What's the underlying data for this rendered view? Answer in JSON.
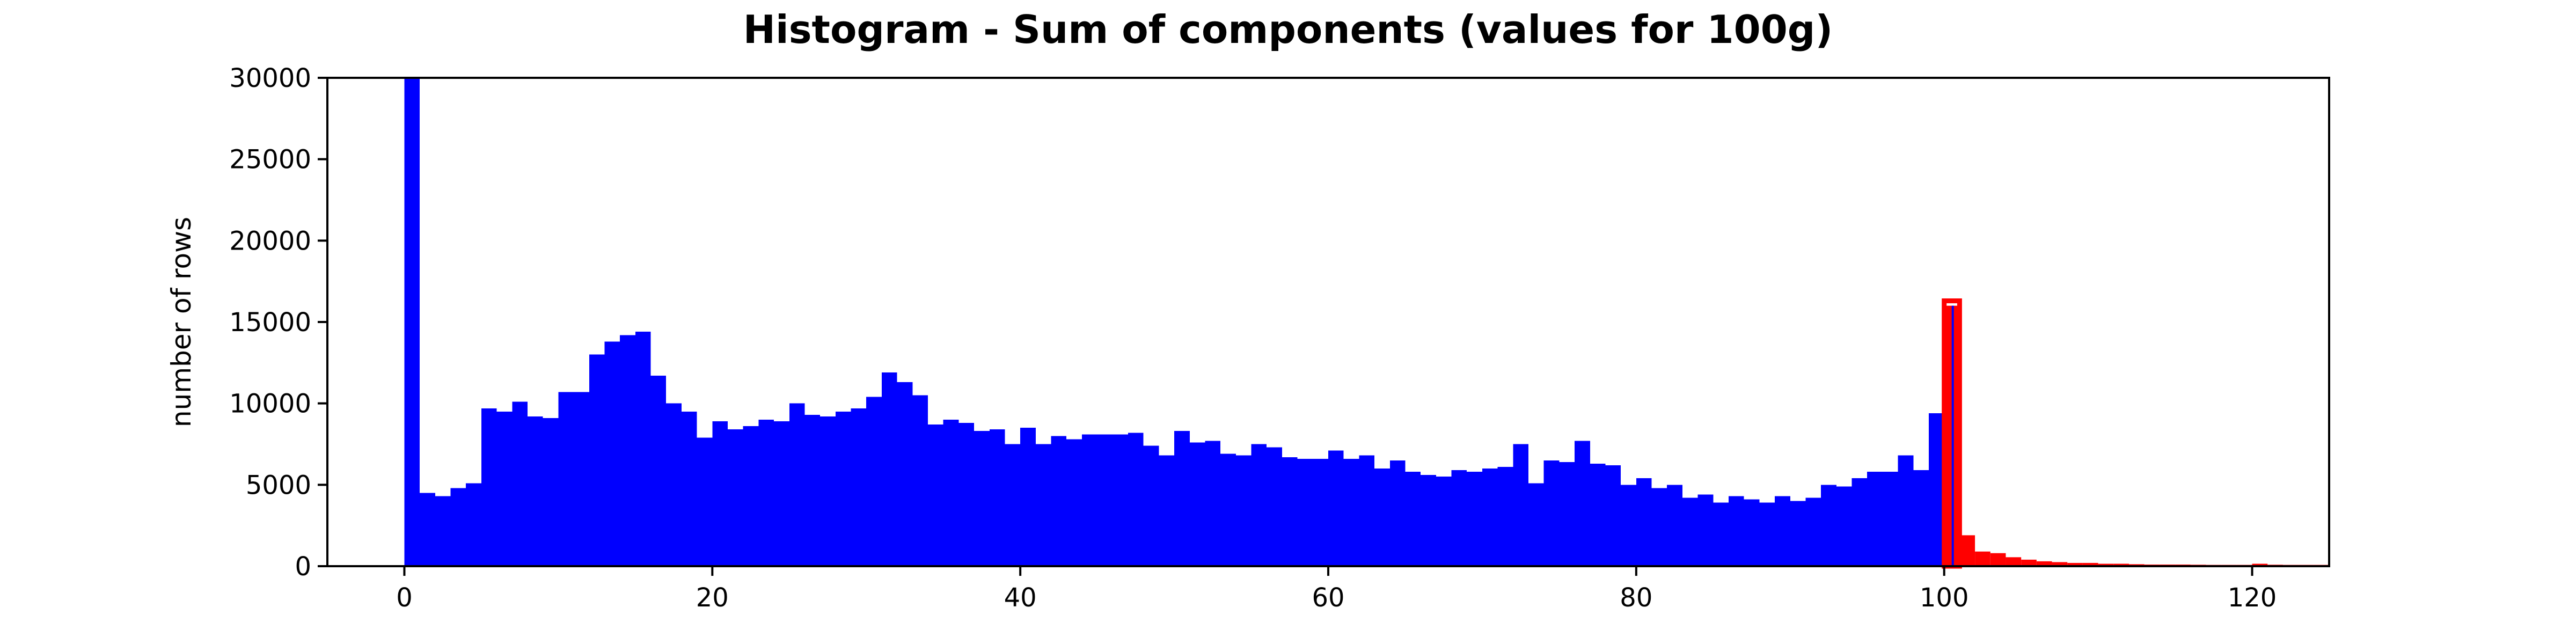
{
  "chart_data": {
    "type": "bar",
    "title": "Histogram - Sum of components (values for 100g)",
    "xlabel": "",
    "ylabel": "number of rows",
    "xlim": [
      -5,
      125
    ],
    "ylim": [
      0,
      30000
    ],
    "bin_width": 1,
    "grid": false,
    "x_ticks": [
      0,
      20,
      40,
      60,
      80,
      100,
      120
    ],
    "y_ticks": [
      0,
      5000,
      10000,
      15000,
      20000,
      25000,
      30000
    ],
    "colors": {
      "main": "#0000ff",
      "over100": "#ff0000",
      "outline": "#ff0000"
    },
    "series": [
      {
        "x": [
          0,
          1,
          2,
          3,
          4,
          5,
          6,
          7,
          8,
          9,
          10,
          11,
          12,
          13,
          14,
          15,
          16,
          17,
          18,
          19,
          20,
          21,
          22,
          23,
          24,
          25,
          26,
          27,
          28,
          29,
          30,
          31,
          32,
          33,
          34,
          35,
          36,
          37,
          38,
          39,
          40,
          41,
          42,
          43,
          44,
          45,
          46,
          47,
          48,
          49,
          50,
          51,
          52,
          53,
          54,
          55,
          56,
          57,
          58,
          59,
          60,
          61,
          62,
          63,
          64,
          65,
          66,
          67,
          68,
          69,
          70,
          71,
          72,
          73,
          74,
          75,
          76,
          77,
          78,
          79,
          80,
          81,
          82,
          83,
          84,
          85,
          86,
          87,
          88,
          89,
          90,
          91,
          92,
          93,
          94,
          95,
          96,
          97,
          98,
          99
        ],
        "values": [
          30000,
          4500,
          4300,
          4800,
          5100,
          9700,
          9500,
          10100,
          9200,
          9100,
          10700,
          10700,
          13000,
          13800,
          14200,
          14400,
          11700,
          10000,
          9500,
          7900,
          8900,
          8400,
          8600,
          9000,
          8900,
          10000,
          9300,
          9200,
          9500,
          9700,
          10400,
          11900,
          11300,
          10500,
          8700,
          9000,
          8800,
          8300,
          8400,
          7500,
          8500,
          7500,
          8000,
          7800,
          8100,
          8100,
          8100,
          8200,
          7400,
          6800,
          8300,
          7600,
          7700,
          6900,
          6800,
          7500,
          7300,
          6700,
          6600,
          6600,
          7100,
          6600,
          6800,
          6000,
          6500,
          5800,
          5600,
          5500,
          5900,
          5800,
          6000,
          6100,
          7500,
          5100,
          6500,
          6400,
          7700,
          6300,
          6200,
          5000,
          5400,
          4800,
          5000,
          4200,
          4400,
          3900,
          4300,
          4100,
          3900,
          4300,
          4000,
          4200,
          5000,
          4900,
          5400,
          5800,
          5800,
          6800,
          5900,
          9400
        ],
        "color": "#0000ff"
      },
      {
        "x": [
          100,
          101,
          102,
          103,
          104,
          105,
          106,
          107,
          108,
          109,
          110,
          111,
          112,
          113,
          114,
          115,
          116,
          117,
          118,
          119,
          120,
          121,
          122,
          123,
          124
        ],
        "values": [
          16000,
          1900,
          900,
          800,
          550,
          400,
          300,
          250,
          200,
          200,
          150,
          150,
          120,
          100,
          100,
          100,
          90,
          80,
          80,
          80,
          150,
          90,
          80,
          80,
          80
        ],
        "color": "#ff0000"
      }
    ]
  }
}
